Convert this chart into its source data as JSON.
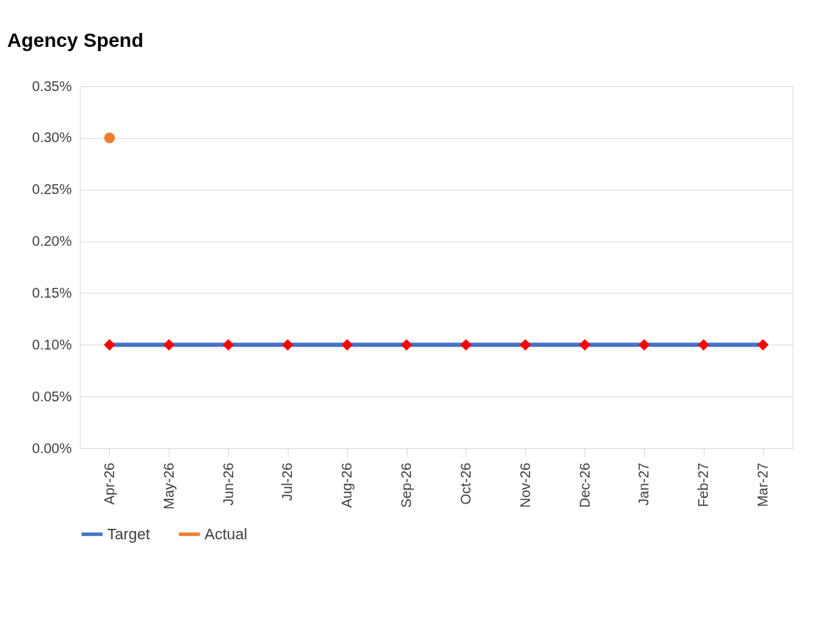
{
  "chart_data": {
    "type": "line",
    "title": "Agency Spend",
    "categories": [
      "Apr-26",
      "May-26",
      "Jun-26",
      "Jul-26",
      "Aug-26",
      "Sep-26",
      "Oct-26",
      "Nov-26",
      "Dec-26",
      "Jan-27",
      "Feb-27",
      "Mar-27"
    ],
    "series": [
      {
        "name": "Target",
        "color": "#4472c4",
        "marker": "diamond",
        "colors": [
          "#ff0000",
          "#ff0000",
          "#ff0000",
          "#ff0000",
          "#ff0000",
          "#ff0000",
          "#ff0000",
          "#ff0000",
          "#ff0000",
          "#ff0000",
          "#ff0000",
          "#ff0000"
        ],
        "values": [
          0.1,
          0.1,
          0.1,
          0.1,
          0.1,
          0.1,
          0.1,
          0.1,
          0.1,
          0.1,
          0.1,
          0.1
        ]
      },
      {
        "name": "Actual",
        "color": "#ed7d31",
        "marker": "circle",
        "values": [
          0.3,
          null,
          null,
          null,
          null,
          null,
          null,
          null,
          null,
          null,
          null,
          null
        ]
      }
    ],
    "ylim": [
      0,
      0.35
    ],
    "yticks": [
      {
        "value": 0,
        "label": "0.00%"
      },
      {
        "value": 0.05,
        "label": "0.05%"
      },
      {
        "value": 0.1,
        "label": "0.10%"
      },
      {
        "value": 0.15,
        "label": "0.15%"
      },
      {
        "value": 0.2,
        "label": "0.20%"
      },
      {
        "value": 0.25,
        "label": "0.25%"
      },
      {
        "value": 0.3,
        "label": "0.30%"
      },
      {
        "value": 0.35,
        "label": "0.35%"
      }
    ],
    "grid": "y",
    "legend": "bottom",
    "line_style": "solid"
  }
}
